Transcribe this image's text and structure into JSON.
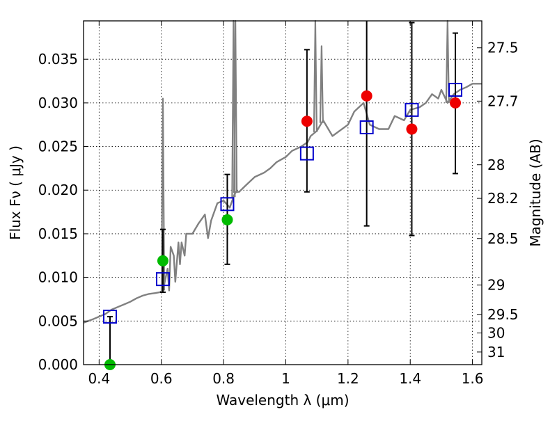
{
  "chart_data": {
    "type": "scatter",
    "xlabel": "Wavelength  λ (μm)",
    "ylabel": "Flux  Fν  ( μJy )",
    "y2label": "Magnitude (AB)",
    "xlim": [
      0.35,
      1.63
    ],
    "ylim": [
      0.0,
      0.0394
    ],
    "grid": true,
    "x_ticks": [
      0.4,
      0.6,
      0.8,
      1.0,
      1.2,
      1.4,
      1.6
    ],
    "x_tick_labels": [
      "0.4",
      "0.6",
      "0.8",
      "1",
      "1.2",
      "1.4",
      "1.6"
    ],
    "y_ticks": [
      0.0,
      0.005,
      0.01,
      0.015,
      0.02,
      0.025,
      0.03,
      0.035
    ],
    "y_tick_labels": [
      "0.000",
      "0.005",
      "0.010",
      "0.015",
      "0.020",
      "0.025",
      "0.030",
      "0.035"
    ],
    "mag_ticks": [
      27.5,
      27.7,
      28,
      28.2,
      28.5,
      29,
      29.5,
      30,
      31
    ],
    "mag_tick_labels": [
      "27.5",
      "27.7",
      "28",
      "28.2",
      "28.5",
      "29",
      "29.5",
      "30",
      "31"
    ],
    "colors": {
      "spectrum": "#808080",
      "model_squares": "#0000cc",
      "green_points": "#00bb00",
      "red_points": "#ee0000",
      "error_bars": "#000000"
    },
    "spectrum": {
      "x": [
        0.35,
        0.38,
        0.4,
        0.42,
        0.44,
        0.46,
        0.48,
        0.5,
        0.52,
        0.54,
        0.56,
        0.58,
        0.595,
        0.605,
        0.62,
        0.625,
        0.63,
        0.64,
        0.645,
        0.655,
        0.66,
        0.665,
        0.675,
        0.68,
        0.7,
        0.72,
        0.74,
        0.75,
        0.76,
        0.78,
        0.8,
        0.82,
        0.835,
        0.84,
        0.85,
        0.87,
        0.9,
        0.93,
        0.95,
        0.97,
        1.0,
        1.02,
        1.05,
        1.07,
        1.08,
        1.1,
        1.12,
        1.15,
        1.2,
        1.22,
        1.25,
        1.27,
        1.3,
        1.33,
        1.35,
        1.38,
        1.4,
        1.43,
        1.45,
        1.47,
        1.49,
        1.5,
        1.52,
        1.54,
        1.56,
        1.58,
        1.6,
        1.63
      ],
      "y": [
        0.0048,
        0.0052,
        0.0055,
        0.0058,
        0.0063,
        0.0066,
        0.0069,
        0.0072,
        0.0076,
        0.0079,
        0.0081,
        0.0082,
        0.0083,
        0.0085,
        0.011,
        0.0085,
        0.0135,
        0.0125,
        0.0095,
        0.014,
        0.0115,
        0.014,
        0.0125,
        0.015,
        0.015,
        0.0162,
        0.0172,
        0.0145,
        0.0165,
        0.0185,
        0.0188,
        0.018,
        0.0195,
        0.0198,
        0.0198,
        0.0205,
        0.0215,
        0.022,
        0.0225,
        0.0232,
        0.0238,
        0.0245,
        0.025,
        0.0255,
        0.0262,
        0.0268,
        0.028,
        0.0262,
        0.0275,
        0.029,
        0.03,
        0.0275,
        0.027,
        0.027,
        0.0285,
        0.028,
        0.0292,
        0.0295,
        0.03,
        0.031,
        0.0305,
        0.0315,
        0.03,
        0.031,
        0.0315,
        0.0318,
        0.0322,
        0.0322
      ]
    },
    "spectrum_spikes": [
      {
        "x": 0.605,
        "y": 0.0305
      },
      {
        "x": 0.832,
        "y": 0.0394
      },
      {
        "x": 0.838,
        "y": 0.0394
      },
      {
        "x": 1.095,
        "y": 0.0394
      },
      {
        "x": 1.115,
        "y": 0.0365
      },
      {
        "x": 1.52,
        "y": 0.0394
      }
    ],
    "model_points": [
      {
        "x": 0.435,
        "y": 0.0055
      },
      {
        "x": 0.605,
        "y": 0.0098
      },
      {
        "x": 0.812,
        "y": 0.0184
      },
      {
        "x": 1.068,
        "y": 0.0242
      },
      {
        "x": 1.26,
        "y": 0.0272
      },
      {
        "x": 1.405,
        "y": 0.0292
      },
      {
        "x": 1.545,
        "y": 0.0315
      }
    ],
    "observed_green": [
      {
        "x": 0.435,
        "y": 0.0,
        "err_low": 0.0,
        "err_high": 0.0055
      },
      {
        "x": 0.605,
        "y": 0.0119,
        "err_low": 0.0083,
        "err_high": 0.0155
      },
      {
        "x": 0.812,
        "y": 0.0166,
        "err_low": 0.0115,
        "err_high": 0.0218
      }
    ],
    "observed_red": [
      {
        "x": 1.068,
        "y": 0.0279,
        "err_low": 0.0198,
        "err_high": 0.0361
      },
      {
        "x": 1.26,
        "y": 0.0308,
        "err_low": 0.0159,
        "err_high": 0.0394
      },
      {
        "x": 1.405,
        "y": 0.027,
        "err_low": 0.0148,
        "err_high": 0.0392
      },
      {
        "x": 1.545,
        "y": 0.03,
        "err_low": 0.0219,
        "err_high": 0.038
      }
    ]
  }
}
